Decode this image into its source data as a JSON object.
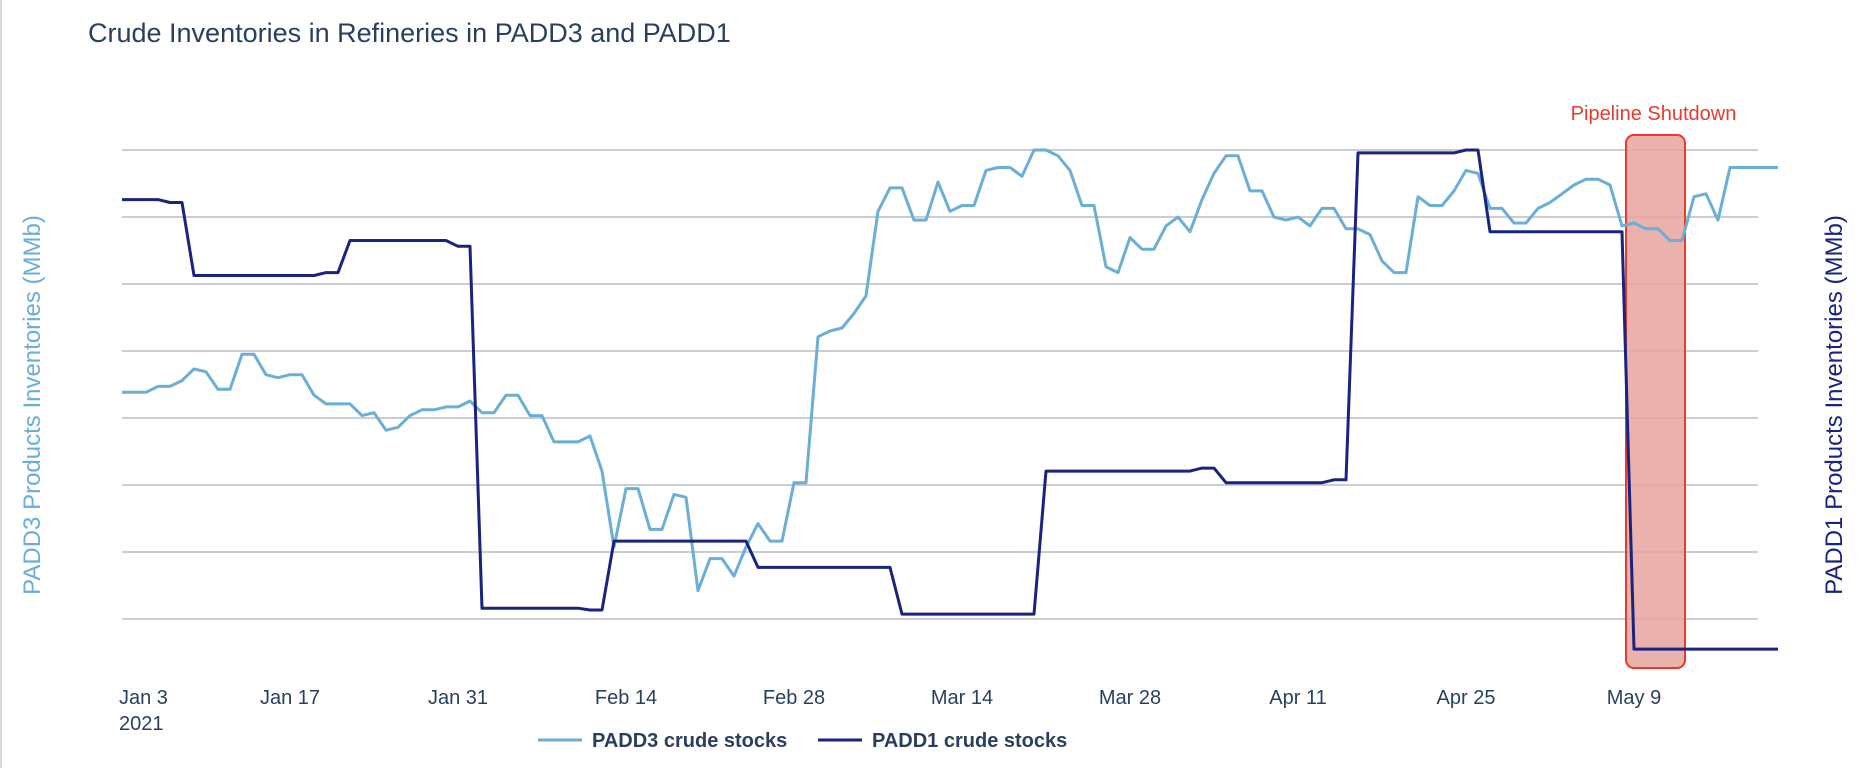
{
  "chart_data": {
    "type": "line",
    "title": "Crude Inventories in Refineries in PADD3 and PADD1",
    "ylabel_left": "PADD3 Products Inventories (MMb)",
    "ylabel_right": "PADD1 Products Inventories (MMb)",
    "y_tick_labels": "hidden",
    "grid": true,
    "legend_placement": "bottom-center",
    "x_ticks": [
      {
        "date": "2021-01-03",
        "label": "Jan 3",
        "sublabel": "2021"
      },
      {
        "date": "2021-01-17",
        "label": "Jan 17"
      },
      {
        "date": "2021-01-31",
        "label": "Jan 31"
      },
      {
        "date": "2021-02-14",
        "label": "Feb 14"
      },
      {
        "date": "2021-02-28",
        "label": "Feb 28"
      },
      {
        "date": "2021-03-14",
        "label": "Mar 14"
      },
      {
        "date": "2021-03-28",
        "label": "Mar 28"
      },
      {
        "date": "2021-04-11",
        "label": "Apr 11"
      },
      {
        "date": "2021-04-25",
        "label": "Apr 25"
      },
      {
        "date": "2021-05-09",
        "label": "May 9"
      }
    ],
    "xlim": [
      "2021-01-03",
      "2021-05-18"
    ],
    "y_grid_count": 8,
    "series": [
      {
        "name": "PADD3 crude stocks",
        "color": "#6baed6",
        "axis": "left",
        "points": [
          [
            "2021-01-03",
            3.85
          ],
          [
            "2021-01-05",
            3.85
          ],
          [
            "2021-01-06",
            3.95
          ],
          [
            "2021-01-07",
            3.95
          ],
          [
            "2021-01-08",
            4.05
          ],
          [
            "2021-01-09",
            4.25
          ],
          [
            "2021-01-10",
            4.2
          ],
          [
            "2021-01-11",
            3.9
          ],
          [
            "2021-01-12",
            3.9
          ],
          [
            "2021-01-13",
            4.5
          ],
          [
            "2021-01-14",
            4.5
          ],
          [
            "2021-01-15",
            4.15
          ],
          [
            "2021-01-16",
            4.1
          ],
          [
            "2021-01-17",
            4.15
          ],
          [
            "2021-01-18",
            4.15
          ],
          [
            "2021-01-19",
            3.8
          ],
          [
            "2021-01-20",
            3.65
          ],
          [
            "2021-01-21",
            3.65
          ],
          [
            "2021-01-22",
            3.65
          ],
          [
            "2021-01-23",
            3.45
          ],
          [
            "2021-01-24",
            3.5
          ],
          [
            "2021-01-25",
            3.2
          ],
          [
            "2021-01-26",
            3.25
          ],
          [
            "2021-01-27",
            3.45
          ],
          [
            "2021-01-28",
            3.55
          ],
          [
            "2021-01-29",
            3.55
          ],
          [
            "2021-01-30",
            3.6
          ],
          [
            "2021-01-31",
            3.6
          ],
          [
            "2021-02-01",
            3.7
          ],
          [
            "2021-02-02",
            3.5
          ],
          [
            "2021-02-03",
            3.5
          ],
          [
            "2021-02-04",
            3.8
          ],
          [
            "2021-02-05",
            3.8
          ],
          [
            "2021-02-06",
            3.45
          ],
          [
            "2021-02-07",
            3.45
          ],
          [
            "2021-02-08",
            3.0
          ],
          [
            "2021-02-09",
            3.0
          ],
          [
            "2021-02-10",
            3.0
          ],
          [
            "2021-02-11",
            3.1
          ],
          [
            "2021-02-12",
            2.5
          ],
          [
            "2021-02-13",
            1.2
          ],
          [
            "2021-02-14",
            2.2
          ],
          [
            "2021-02-15",
            2.2
          ],
          [
            "2021-02-16",
            1.5
          ],
          [
            "2021-02-17",
            1.5
          ],
          [
            "2021-02-18",
            2.1
          ],
          [
            "2021-02-19",
            2.05
          ],
          [
            "2021-02-20",
            0.45
          ],
          [
            "2021-02-21",
            1.0
          ],
          [
            "2021-02-22",
            1.0
          ],
          [
            "2021-02-23",
            0.7
          ],
          [
            "2021-02-24",
            1.2
          ],
          [
            "2021-02-25",
            1.6
          ],
          [
            "2021-02-26",
            1.3
          ],
          [
            "2021-02-27",
            1.3
          ],
          [
            "2021-02-28",
            2.3
          ],
          [
            "2021-03-01",
            2.3
          ],
          [
            "2021-03-02",
            4.8
          ],
          [
            "2021-03-03",
            4.9
          ],
          [
            "2021-03-04",
            4.95
          ],
          [
            "2021-03-05",
            5.2
          ],
          [
            "2021-03-06",
            5.5
          ],
          [
            "2021-03-07",
            6.95
          ],
          [
            "2021-03-08",
            7.35
          ],
          [
            "2021-03-09",
            7.35
          ],
          [
            "2021-03-10",
            6.8
          ],
          [
            "2021-03-11",
            6.8
          ],
          [
            "2021-03-12",
            7.45
          ],
          [
            "2021-03-13",
            6.95
          ],
          [
            "2021-03-14",
            7.05
          ],
          [
            "2021-03-15",
            7.05
          ],
          [
            "2021-03-16",
            7.65
          ],
          [
            "2021-03-17",
            7.7
          ],
          [
            "2021-03-18",
            7.7
          ],
          [
            "2021-03-19",
            7.55
          ],
          [
            "2021-03-20",
            8.0
          ],
          [
            "2021-03-21",
            8.0
          ],
          [
            "2021-03-22",
            7.9
          ],
          [
            "2021-03-23",
            7.65
          ],
          [
            "2021-03-24",
            7.05
          ],
          [
            "2021-03-25",
            7.05
          ],
          [
            "2021-03-26",
            6.0
          ],
          [
            "2021-03-27",
            5.9
          ],
          [
            "2021-03-28",
            6.5
          ],
          [
            "2021-03-29",
            6.3
          ],
          [
            "2021-03-30",
            6.3
          ],
          [
            "2021-03-31",
            6.7
          ],
          [
            "2021-04-01",
            6.85
          ],
          [
            "2021-04-02",
            6.6
          ],
          [
            "2021-04-03",
            7.15
          ],
          [
            "2021-04-04",
            7.6
          ],
          [
            "2021-04-05",
            7.9
          ],
          [
            "2021-04-06",
            7.9
          ],
          [
            "2021-04-07",
            7.3
          ],
          [
            "2021-04-08",
            7.3
          ],
          [
            "2021-04-09",
            6.85
          ],
          [
            "2021-04-10",
            6.8
          ],
          [
            "2021-04-11",
            6.85
          ],
          [
            "2021-04-12",
            6.7
          ],
          [
            "2021-04-13",
            7.0
          ],
          [
            "2021-04-14",
            7.0
          ],
          [
            "2021-04-15",
            6.65
          ],
          [
            "2021-04-16",
            6.65
          ],
          [
            "2021-04-17",
            6.55
          ],
          [
            "2021-04-18",
            6.1
          ],
          [
            "2021-04-19",
            5.9
          ],
          [
            "2021-04-20",
            5.9
          ],
          [
            "2021-04-21",
            7.2
          ],
          [
            "2021-04-22",
            7.05
          ],
          [
            "2021-04-23",
            7.05
          ],
          [
            "2021-04-24",
            7.3
          ],
          [
            "2021-04-25",
            7.65
          ],
          [
            "2021-04-26",
            7.6
          ],
          [
            "2021-04-27",
            7.0
          ],
          [
            "2021-04-28",
            7.0
          ],
          [
            "2021-04-29",
            6.75
          ],
          [
            "2021-04-30",
            6.75
          ],
          [
            "2021-05-01",
            7.0
          ],
          [
            "2021-05-02",
            7.1
          ],
          [
            "2021-05-03",
            7.25
          ],
          [
            "2021-05-04",
            7.4
          ],
          [
            "2021-05-05",
            7.5
          ],
          [
            "2021-05-06",
            7.5
          ],
          [
            "2021-05-07",
            7.4
          ],
          [
            "2021-05-08",
            6.7
          ],
          [
            "2021-05-09",
            6.75
          ],
          [
            "2021-05-10",
            6.65
          ],
          [
            "2021-05-11",
            6.65
          ],
          [
            "2021-05-12",
            6.45
          ],
          [
            "2021-05-13",
            6.45
          ],
          [
            "2021-05-14",
            7.2
          ],
          [
            "2021-05-15",
            7.25
          ],
          [
            "2021-05-16",
            6.8
          ],
          [
            "2021-05-17",
            7.7
          ],
          [
            "2021-05-18",
            7.7
          ],
          [
            "2021-05-19",
            7.7
          ],
          [
            "2021-05-20",
            7.7
          ],
          [
            "2021-05-21",
            7.7
          ]
        ]
      },
      {
        "name": "PADD1 crude stocks",
        "color": "#1a237e",
        "axis": "right",
        "points": [
          [
            "2021-01-03",
            7.15
          ],
          [
            "2021-01-06",
            7.15
          ],
          [
            "2021-01-07",
            7.1
          ],
          [
            "2021-01-08",
            7.1
          ],
          [
            "2021-01-09",
            5.85
          ],
          [
            "2021-01-19",
            5.85
          ],
          [
            "2021-01-20",
            5.9
          ],
          [
            "2021-01-21",
            5.9
          ],
          [
            "2021-01-22",
            6.45
          ],
          [
            "2021-01-30",
            6.45
          ],
          [
            "2021-01-31",
            6.35
          ],
          [
            "2021-02-01",
            6.35
          ],
          [
            "2021-02-02",
            0.15
          ],
          [
            "2021-02-10",
            0.15
          ],
          [
            "2021-02-11",
            0.12
          ],
          [
            "2021-02-12",
            0.12
          ],
          [
            "2021-02-13",
            1.3
          ],
          [
            "2021-02-24",
            1.3
          ],
          [
            "2021-02-25",
            0.85
          ],
          [
            "2021-03-08",
            0.85
          ],
          [
            "2021-03-09",
            0.05
          ],
          [
            "2021-03-20",
            0.05
          ],
          [
            "2021-03-21",
            2.5
          ],
          [
            "2021-04-02",
            2.5
          ],
          [
            "2021-04-03",
            2.55
          ],
          [
            "2021-04-04",
            2.55
          ],
          [
            "2021-04-05",
            2.3
          ],
          [
            "2021-04-13",
            2.3
          ],
          [
            "2021-04-14",
            2.35
          ],
          [
            "2021-04-15",
            2.35
          ],
          [
            "2021-04-16",
            7.95
          ],
          [
            "2021-04-24",
            7.95
          ],
          [
            "2021-04-25",
            8.0
          ],
          [
            "2021-04-26",
            8.0
          ],
          [
            "2021-04-27",
            6.6
          ],
          [
            "2021-05-08",
            6.6
          ],
          [
            "2021-05-09",
            -0.55
          ],
          [
            "2021-05-21",
            -0.55
          ]
        ]
      }
    ],
    "annotations": [
      {
        "type": "shaded-region",
        "label": "Pipeline Shutdown",
        "x_start": "2021-05-08",
        "x_end": "2021-05-13",
        "fill": "#e8a39e",
        "stroke": "#e63b2e",
        "label_color": "#e63b2e"
      }
    ]
  }
}
